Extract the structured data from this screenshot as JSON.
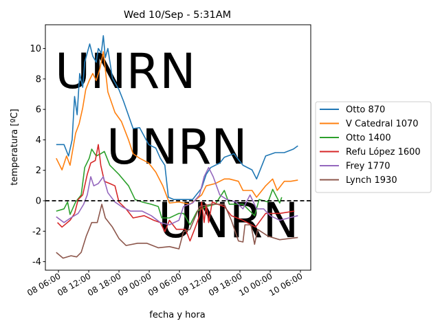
{
  "chart_data": {
    "type": "line",
    "title": "Wed 10/Sep - 5:31AM",
    "xlabel": "fecha y hora",
    "ylabel": "temperatura [ºC]",
    "x_units": "hours since 08 06:00",
    "xlim": [
      -2.6,
      50.05
    ],
    "ylim": [
      -4.56,
      11.56
    ],
    "xticks": [
      {
        "v": 0,
        "label": "08 06:00"
      },
      {
        "v": 6,
        "label": "08 12:00"
      },
      {
        "v": 12,
        "label": "08 18:00"
      },
      {
        "v": 18,
        "label": "09 00:00"
      },
      {
        "v": 24,
        "label": "09 06:00"
      },
      {
        "v": 30,
        "label": "09 12:00"
      },
      {
        "v": 36,
        "label": "09 18:00"
      },
      {
        "v": 42,
        "label": "10 00:00"
      },
      {
        "v": 48,
        "label": "10 06:00"
      }
    ],
    "yticks": [
      -4,
      -2,
      0,
      2,
      4,
      6,
      8,
      10
    ],
    "reference_line": {
      "y": 0,
      "style": "dashed",
      "color": "#000000"
    },
    "watermark": "UNRN",
    "legend_placement": "right-outside",
    "series": [
      {
        "name": "Otto 870",
        "color": "#1f77b4",
        "points": [
          [
            -0.45,
            3.69
          ],
          [
            1.1,
            3.69
          ],
          [
            2.0,
            2.94
          ],
          [
            2.7,
            4.0
          ],
          [
            3.2,
            6.85
          ],
          [
            3.7,
            5.65
          ],
          [
            4.2,
            8.36
          ],
          [
            4.8,
            7.45
          ],
          [
            5.2,
            9.1
          ],
          [
            6.2,
            10.3
          ],
          [
            6.8,
            9.5
          ],
          [
            7.5,
            9.1
          ],
          [
            7.9,
            10.0
          ],
          [
            8.5,
            9.7
          ],
          [
            8.9,
            10.84
          ],
          [
            9.3,
            9.4
          ],
          [
            9.8,
            10.0
          ],
          [
            10.7,
            8.05
          ],
          [
            12.0,
            7.3
          ],
          [
            12.9,
            6.55
          ],
          [
            14.8,
            4.74
          ],
          [
            16.1,
            4.8
          ],
          [
            17.9,
            3.69
          ],
          [
            19.3,
            3.46
          ],
          [
            20.2,
            2.79
          ],
          [
            21.1,
            2.33
          ],
          [
            21.8,
            0.23
          ],
          [
            22.9,
            0.08
          ],
          [
            24.8,
            0.08
          ],
          [
            26.6,
            0.08
          ],
          [
            28.4,
            0.83
          ],
          [
            29.3,
            1.73
          ],
          [
            30.2,
            2.18
          ],
          [
            32.0,
            2.48
          ],
          [
            32.9,
            2.86
          ],
          [
            34.8,
            3.09
          ],
          [
            36.6,
            2.33
          ],
          [
            38.4,
            2.03
          ],
          [
            39.3,
            1.43
          ],
          [
            40.2,
            2.18
          ],
          [
            41.1,
            2.94
          ],
          [
            43.0,
            3.16
          ],
          [
            44.8,
            3.16
          ],
          [
            46.6,
            3.39
          ],
          [
            47.5,
            3.61
          ]
        ]
      },
      {
        "name": "V Catedral 1070",
        "color": "#ff7f0e",
        "points": [
          [
            -0.45,
            2.79
          ],
          [
            0.7,
            2.03
          ],
          [
            1.6,
            2.94
          ],
          [
            2.3,
            2.33
          ],
          [
            3.4,
            4.44
          ],
          [
            4.1,
            5.05
          ],
          [
            4.8,
            6.1
          ],
          [
            5.4,
            7.3
          ],
          [
            6.1,
            7.9
          ],
          [
            6.8,
            8.36
          ],
          [
            7.5,
            7.9
          ],
          [
            8.2,
            8.66
          ],
          [
            8.9,
            9.79
          ],
          [
            9.8,
            7.15
          ],
          [
            11.2,
            5.8
          ],
          [
            12.5,
            5.2
          ],
          [
            13.9,
            3.99
          ],
          [
            14.8,
            3.09
          ],
          [
            16.1,
            2.79
          ],
          [
            17.9,
            2.48
          ],
          [
            19.3,
            1.88
          ],
          [
            20.7,
            0.98
          ],
          [
            22.0,
            -0.15
          ],
          [
            23.9,
            -0.08
          ],
          [
            26.1,
            -0.23
          ],
          [
            28.4,
            0.38
          ],
          [
            29.3,
            0.98
          ],
          [
            31.1,
            1.13
          ],
          [
            32.9,
            1.43
          ],
          [
            33.9,
            1.43
          ],
          [
            35.7,
            1.28
          ],
          [
            36.6,
            0.68
          ],
          [
            38.4,
            0.68
          ],
          [
            39.3,
            0.23
          ],
          [
            41.1,
            0.98
          ],
          [
            42.5,
            1.43
          ],
          [
            43.4,
            0.68
          ],
          [
            44.8,
            1.28
          ],
          [
            46.1,
            1.28
          ],
          [
            47.5,
            1.36
          ]
        ]
      },
      {
        "name": "Otto 1400",
        "color": "#2ca02c",
        "points": [
          [
            -0.45,
            -0.68
          ],
          [
            1.1,
            -0.53
          ],
          [
            1.8,
            -0.08
          ],
          [
            2.3,
            -0.9
          ],
          [
            3.4,
            -0.08
          ],
          [
            4.5,
            0.38
          ],
          [
            5.2,
            2.18
          ],
          [
            6.1,
            2.79
          ],
          [
            6.6,
            3.39
          ],
          [
            7.5,
            2.94
          ],
          [
            8.4,
            3.09
          ],
          [
            9.1,
            3.24
          ],
          [
            10.2,
            2.33
          ],
          [
            12.0,
            1.73
          ],
          [
            13.9,
            0.98
          ],
          [
            15.2,
            0.08
          ],
          [
            16.6,
            -0.08
          ],
          [
            18.4,
            -0.23
          ],
          [
            19.8,
            -0.38
          ],
          [
            20.5,
            -1.13
          ],
          [
            22.0,
            -1.13
          ],
          [
            23.9,
            -0.83
          ],
          [
            24.8,
            -0.83
          ],
          [
            26.1,
            -1.58
          ],
          [
            27.5,
            -0.68
          ],
          [
            29.3,
            -0.38
          ],
          [
            31.1,
            -0.23
          ],
          [
            32.9,
            0.68
          ],
          [
            33.9,
            -0.23
          ],
          [
            36.6,
            -0.23
          ],
          [
            38.9,
            -0.98
          ],
          [
            39.8,
            0.08
          ],
          [
            41.6,
            -0.08
          ],
          [
            42.5,
            0.75
          ],
          [
            43.9,
            -0.15
          ],
          [
            44.3,
            0.23
          ]
        ]
      },
      {
        "name": "Refu López 1600",
        "color": "#d62728",
        "points": [
          [
            -0.2,
            -1.43
          ],
          [
            0.7,
            -1.73
          ],
          [
            2.3,
            -1.28
          ],
          [
            3.2,
            -0.83
          ],
          [
            3.9,
            0.08
          ],
          [
            4.8,
            0.38
          ],
          [
            5.7,
            1.73
          ],
          [
            6.4,
            2.48
          ],
          [
            7.3,
            2.64
          ],
          [
            7.9,
            3.69
          ],
          [
            8.4,
            2.33
          ],
          [
            9.1,
            1.28
          ],
          [
            10.2,
            1.13
          ],
          [
            11.2,
            0.98
          ],
          [
            12.0,
            -0.08
          ],
          [
            13.4,
            -0.53
          ],
          [
            14.8,
            -1.13
          ],
          [
            17.0,
            -0.98
          ],
          [
            18.9,
            -1.28
          ],
          [
            20.2,
            -1.43
          ],
          [
            21.1,
            -2.03
          ],
          [
            22.0,
            -1.28
          ],
          [
            23.4,
            -1.88
          ],
          [
            25.2,
            -1.88
          ],
          [
            26.1,
            -2.64
          ],
          [
            27.0,
            -1.88
          ],
          [
            28.0,
            -0.98
          ],
          [
            28.4,
            -0.08
          ],
          [
            28.9,
            -1.43
          ],
          [
            29.3,
            -0.23
          ],
          [
            29.8,
            -1.43
          ],
          [
            30.5,
            -0.08
          ],
          [
            31.6,
            -0.23
          ],
          [
            32.9,
            -0.38
          ],
          [
            34.3,
            -0.98
          ],
          [
            36.6,
            -1.28
          ],
          [
            39.1,
            -1.73
          ],
          [
            41.1,
            -0.83
          ],
          [
            43.9,
            -0.83
          ],
          [
            46.8,
            -0.68
          ]
        ]
      },
      {
        "name": "Frey 1770",
        "color": "#9467bd",
        "points": [
          [
            -0.45,
            -1.05
          ],
          [
            1.1,
            -1.43
          ],
          [
            2.4,
            -1.13
          ],
          [
            3.9,
            -0.83
          ],
          [
            5.0,
            -0.23
          ],
          [
            5.7,
            0.38
          ],
          [
            6.4,
            1.58
          ],
          [
            7.0,
            0.98
          ],
          [
            7.9,
            1.13
          ],
          [
            8.9,
            1.58
          ],
          [
            9.8,
            0.53
          ],
          [
            11.2,
            -0.08
          ],
          [
            12.5,
            -0.38
          ],
          [
            14.3,
            -0.68
          ],
          [
            16.6,
            -0.68
          ],
          [
            18.4,
            -0.98
          ],
          [
            20.2,
            -1.43
          ],
          [
            22.0,
            -1.58
          ],
          [
            23.9,
            -1.28
          ],
          [
            24.8,
            -0.38
          ],
          [
            26.6,
            -0.15
          ],
          [
            28.0,
            0.38
          ],
          [
            28.9,
            1.58
          ],
          [
            29.8,
            2.18
          ],
          [
            30.7,
            1.58
          ],
          [
            32.0,
            0.38
          ],
          [
            33.4,
            0.08
          ],
          [
            35.2,
            -0.08
          ],
          [
            36.6,
            -0.53
          ],
          [
            38.0,
            0.38
          ],
          [
            39.3,
            -0.53
          ],
          [
            40.7,
            -0.53
          ],
          [
            42.0,
            -0.98
          ],
          [
            43.9,
            -1.28
          ],
          [
            45.7,
            -1.13
          ],
          [
            47.5,
            -0.98
          ]
        ]
      },
      {
        "name": "Lynch 1930",
        "color": "#8c564b",
        "points": [
          [
            -0.45,
            -3.39
          ],
          [
            0.9,
            -3.77
          ],
          [
            2.5,
            -3.61
          ],
          [
            3.6,
            -3.69
          ],
          [
            4.5,
            -3.39
          ],
          [
            5.5,
            -2.33
          ],
          [
            6.6,
            -1.43
          ],
          [
            7.7,
            -1.43
          ],
          [
            8.6,
            -0.23
          ],
          [
            9.3,
            -1.13
          ],
          [
            10.7,
            -1.73
          ],
          [
            12.0,
            -2.48
          ],
          [
            13.4,
            -2.94
          ],
          [
            15.7,
            -2.79
          ],
          [
            17.5,
            -2.79
          ],
          [
            19.8,
            -3.09
          ],
          [
            22.0,
            -3.01
          ],
          [
            23.9,
            -3.16
          ],
          [
            24.8,
            -2.03
          ],
          [
            26.1,
            -1.88
          ],
          [
            28.0,
            -0.38
          ],
          [
            30.2,
            -0.23
          ],
          [
            32.9,
            -0.23
          ],
          [
            34.3,
            -1.28
          ],
          [
            35.7,
            -2.64
          ],
          [
            36.6,
            -2.71
          ],
          [
            37.0,
            -1.58
          ],
          [
            38.2,
            -1.58
          ],
          [
            38.9,
            -2.86
          ],
          [
            39.5,
            -1.88
          ],
          [
            41.6,
            -2.33
          ],
          [
            43.9,
            -2.56
          ],
          [
            47.5,
            -2.41
          ]
        ]
      }
    ]
  }
}
